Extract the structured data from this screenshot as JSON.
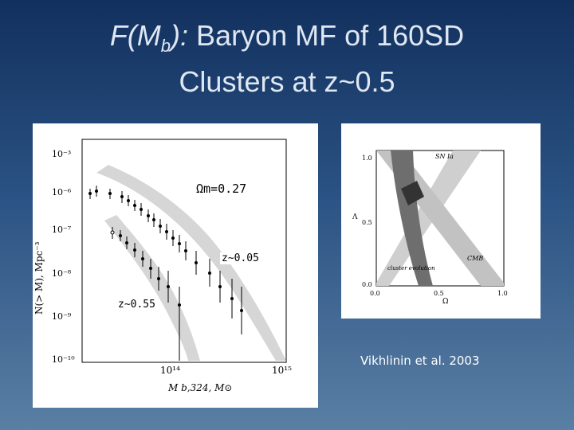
{
  "slide": {
    "title_italic": "F(M",
    "title_sub": "b",
    "title_italic_end": "):",
    "title_rest": " Baryon MF of 160SD",
    "title_line2": "Clusters at z~0.5",
    "citation": "Vikhlinin et al. 2003"
  },
  "left_plot": {
    "annotation_omega": "Ωm=0.27",
    "annotation_z005": "z~0.05",
    "annotation_z055": "z~0.55",
    "ylabel": "N(> M), Mpc⁻³",
    "xlabel": "M b,324, M⊙",
    "yticks": [
      "10⁻³",
      "10⁻⁶",
      "10⁻⁷",
      "10⁻⁸",
      "10⁻⁹",
      "10⁻¹⁰"
    ],
    "xticks": [
      "10¹⁴",
      "10¹⁵"
    ]
  },
  "right_plot": {
    "ylabel": "Λ",
    "xlabel": "Ω",
    "yticks": [
      "1.0",
      "0.5",
      "0.0"
    ],
    "xticks": [
      "0.0",
      "0.5",
      "1.0"
    ],
    "band_snia": "SN Ia",
    "band_cmb": "CMB",
    "band_cluster": "cluster evolution"
  }
}
